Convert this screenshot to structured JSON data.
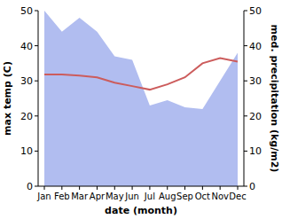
{
  "chart_data": {
    "type": "line",
    "xlabel": "date (month)",
    "ylabel": "max temp (C)",
    "y2label": "med. precipitation (kg/m2)",
    "categories": [
      "Jan",
      "Feb",
      "Mar",
      "Apr",
      "May",
      "Jun",
      "Jul",
      "Aug",
      "Sep",
      "Oct",
      "Nov",
      "Dec"
    ],
    "series": [
      {
        "type": "area",
        "axis": "y2",
        "color": "#b1bdf0",
        "values": [
          50,
          44,
          48,
          44,
          37,
          36,
          23,
          24.5,
          22.5,
          22,
          30,
          38
        ]
      },
      {
        "type": "line",
        "color": "#cc5c5c",
        "values": [
          31.8,
          31.8,
          31.5,
          31,
          29.5,
          28.5,
          27.5,
          29,
          31,
          35,
          36.5,
          35.5
        ]
      }
    ],
    "ylim": [
      0,
      50
    ],
    "yticks": [
      0,
      10,
      20,
      30,
      40,
      50
    ],
    "y2lim": [
      0,
      50
    ],
    "y2ticks": [
      0,
      10,
      20,
      30,
      40,
      50
    ]
  }
}
